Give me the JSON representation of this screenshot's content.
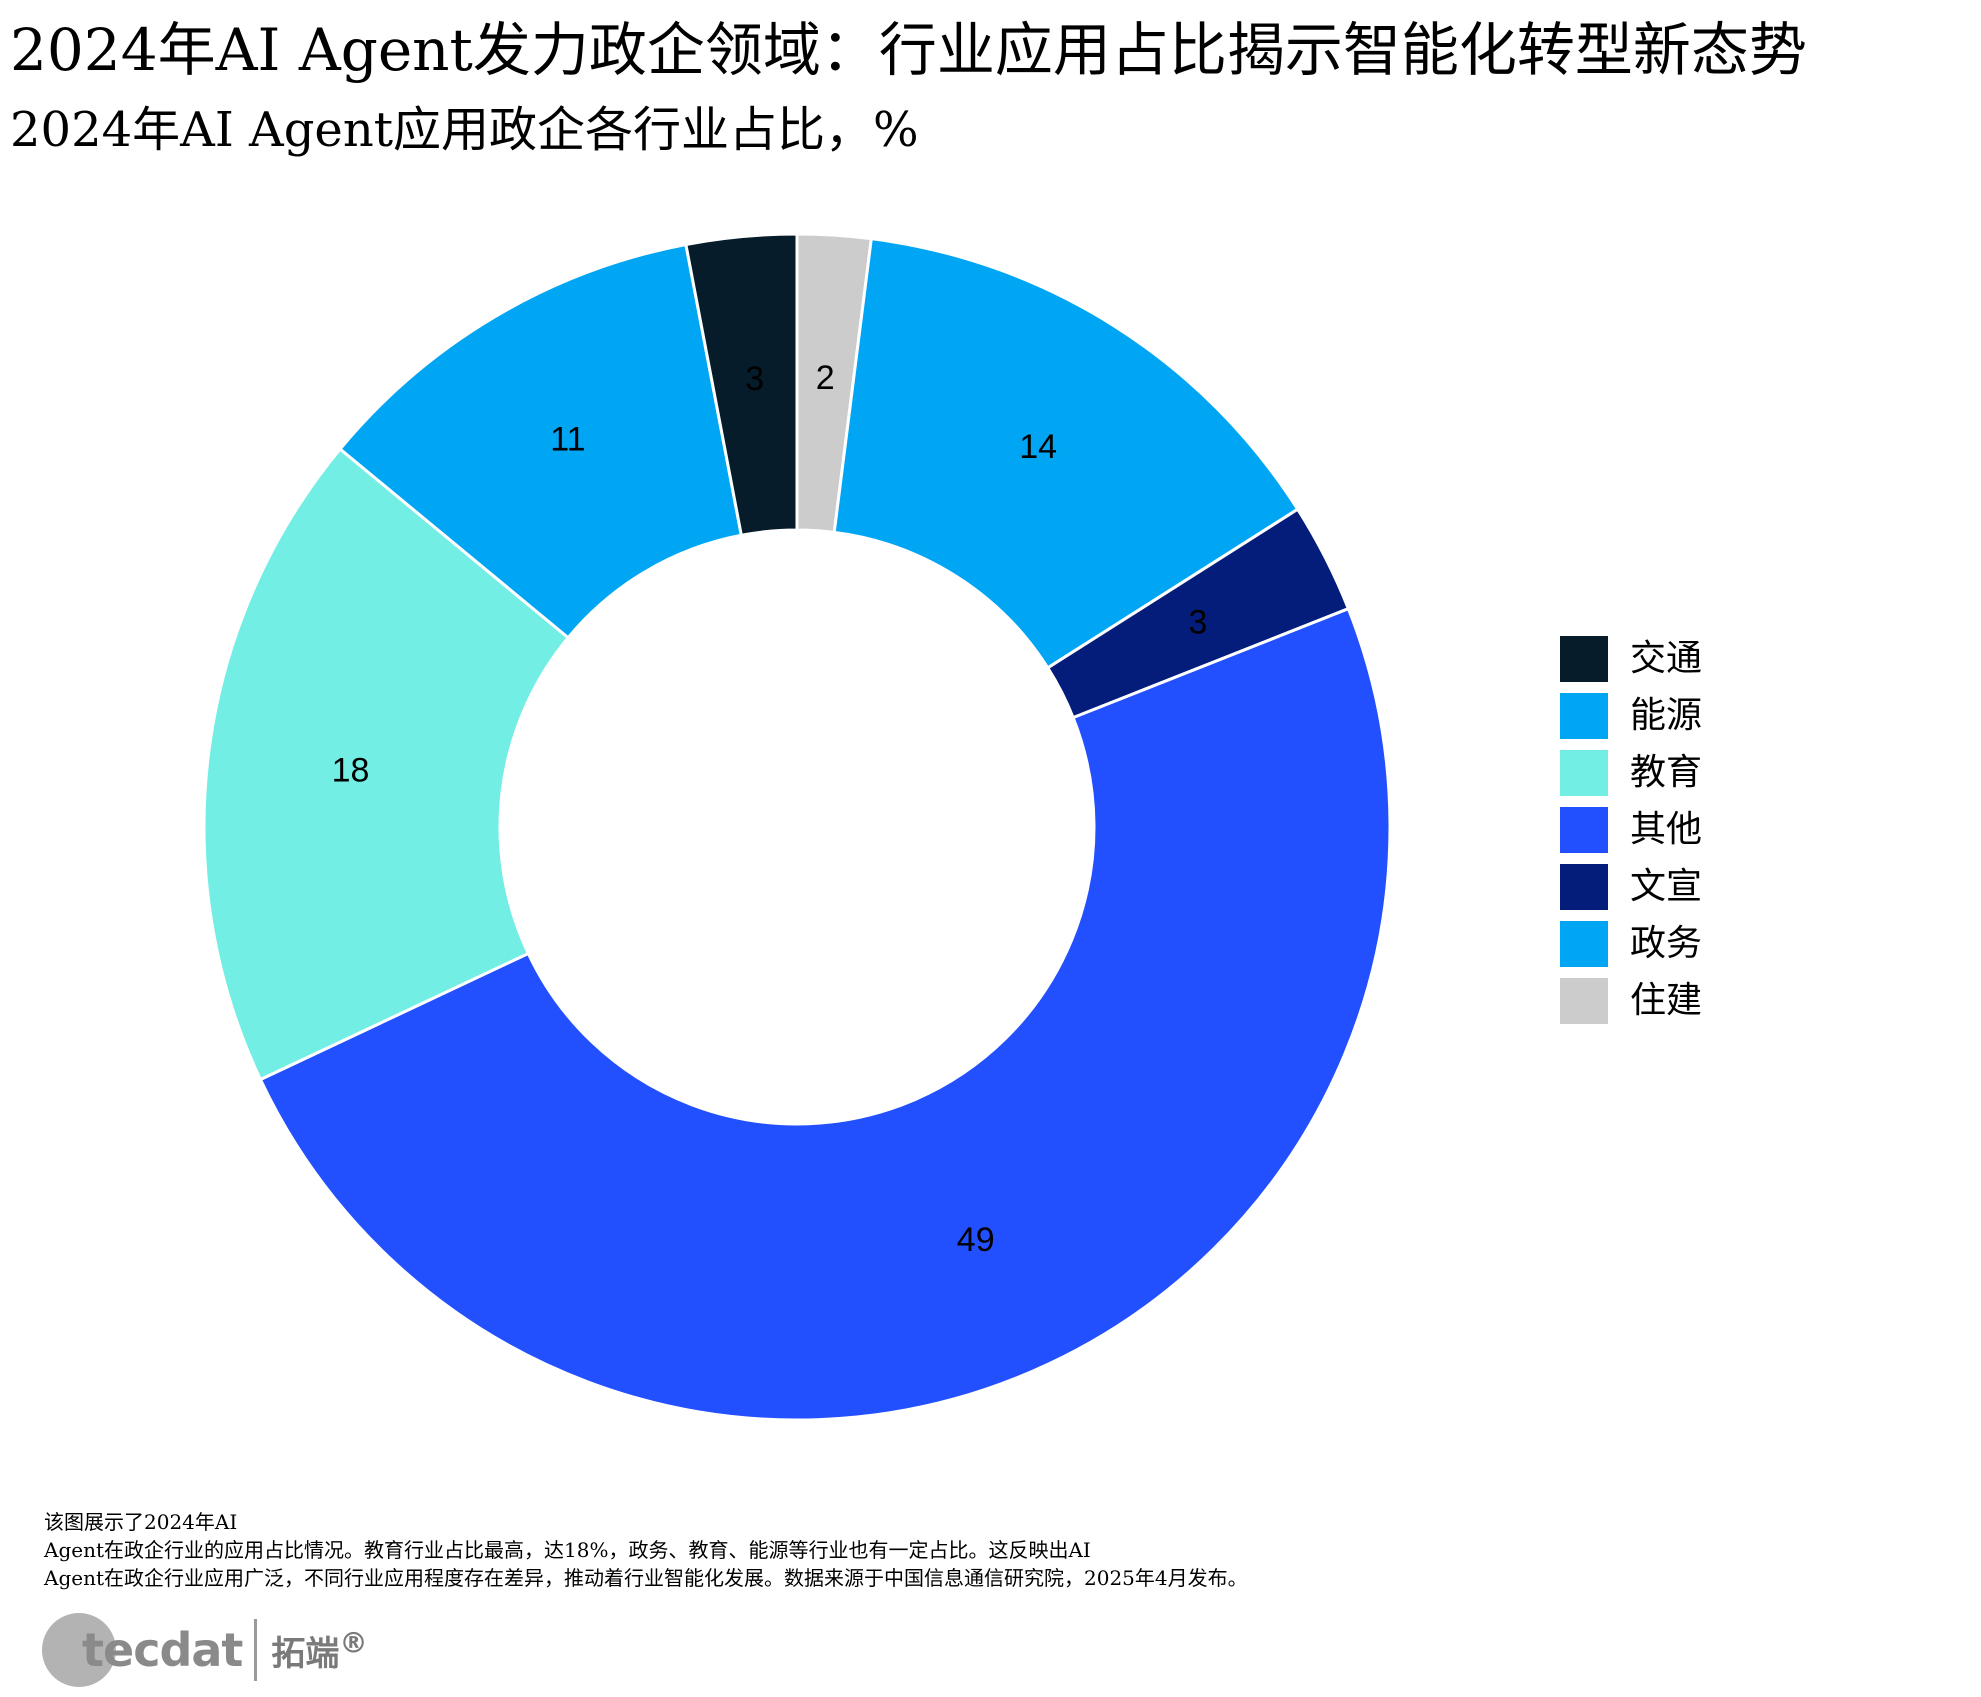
{
  "title": "2024年AI Agent发力政企领域：行业应用占比揭示智能化转型新态势",
  "subtitle": "2024年AI Agent应用政企各行业占比，%",
  "note": {
    "line1": "该图展示了2024年AI",
    "line2": "Agent在政企行业的应用占比情况。教育行业占比最高，达18%，政务、教育、能源等行业也有一定占比。这反映出AI",
    "line3": "Agent在政企行业应用广泛，不同行业应用程度存在差异，推动着行业智能化发展。数据来源于中国信息通信研究院，2025年4月发布。"
  },
  "logo": {
    "text": "tecdat",
    "cn": "拓端",
    "mark": "®"
  },
  "chart_data": {
    "type": "pie",
    "style": "donut",
    "title": "2024年AI Agent应用政企各行业占比，%",
    "unit": "%",
    "start": "top",
    "direction": "clockwise",
    "legend_position": "right",
    "slices": [
      {
        "name": "住建",
        "value": 2,
        "color": "#cccccc"
      },
      {
        "name": "政务",
        "value": 14,
        "color": "#00a5f4"
      },
      {
        "name": "文宣",
        "value": 3,
        "color": "#041d7b"
      },
      {
        "name": "其他",
        "value": 49,
        "color": "#2350ff"
      },
      {
        "name": "教育",
        "value": 18,
        "color": "#72eee4"
      },
      {
        "name": "能源",
        "value": 11,
        "color": "#00a5f4"
      },
      {
        "name": "交通",
        "value": 3,
        "color": "#061c2b"
      }
    ],
    "legend": [
      {
        "name": "交通",
        "color": "#061c2b"
      },
      {
        "name": "能源",
        "color": "#00a5f4"
      },
      {
        "name": "教育",
        "color": "#72eee4"
      },
      {
        "name": "其他",
        "color": "#2350ff"
      },
      {
        "name": "文宣",
        "color": "#041d7b"
      },
      {
        "name": "政务",
        "color": "#00a5f4"
      },
      {
        "name": "住建",
        "color": "#cccccc"
      }
    ]
  }
}
